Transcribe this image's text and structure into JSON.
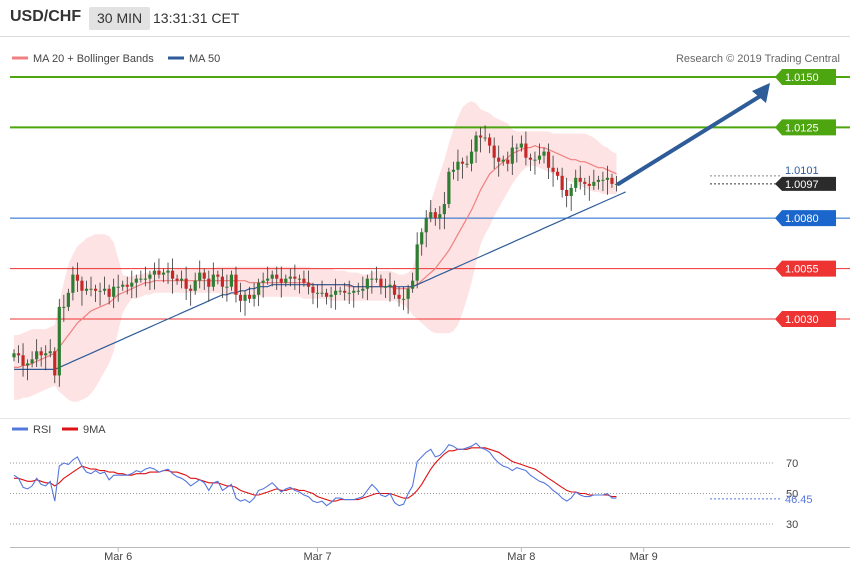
{
  "header": {
    "symbol": "USD/CHF",
    "timeframe": "30 MIN",
    "time": "13:31:31 CET"
  },
  "legend": [
    {
      "label": "MA 20 + Bollinger Bands",
      "color": "#f08080"
    },
    {
      "label": "MA 50",
      "color": "#2e5c99"
    }
  ],
  "copyright": "Research © 2019 Trading Central",
  "chart_data": [
    {
      "type": "candlestick",
      "ylim": [
        2.998,
        2.0158
      ],
      "price_range": [
        0.9988,
        1.0158
      ],
      "x_ticks": [
        {
          "index": 23,
          "label": "Mar 6"
        },
        {
          "index": 67,
          "label": "Mar 7"
        },
        {
          "index": 112,
          "label": "Mar 8"
        },
        {
          "index": 139,
          "label": "Mar 9"
        }
      ],
      "levels": [
        {
          "value": 1.015,
          "label": "1.0150",
          "color": "#4da60f"
        },
        {
          "value": 1.0125,
          "label": "1.0125",
          "color": "#4da60f"
        },
        {
          "value": 1.008,
          "label": "1.0080",
          "color": "#1a66cc"
        },
        {
          "value": 1.0055,
          "label": "1.0055",
          "color": "#ee3333"
        },
        {
          "value": 1.003,
          "label": "1.0030",
          "color": "#ee3333"
        }
      ],
      "last_price": {
        "value": 1.0097,
        "label": "1.0097"
      },
      "bb_upper_label": {
        "value": 1.0101,
        "label": "1.0101"
      },
      "close": [
        1.0013,
        1.0012,
        1.0007,
        1.0008,
        1.001,
        1.0014,
        1.0012,
        1.0013,
        1.0014,
        1.0002,
        1.0036,
        1.0036,
        1.0043,
        1.0052,
        1.0049,
        1.0044,
        1.0045,
        1.0045,
        1.0044,
        1.0044,
        1.0045,
        1.0041,
        1.0046,
        1.0046,
        1.0047,
        1.0046,
        1.0048,
        1.005,
        1.005,
        1.005,
        1.0052,
        1.0054,
        1.0052,
        1.0053,
        1.0054,
        1.005,
        1.0049,
        1.005,
        1.0045,
        1.0044,
        1.0049,
        1.0053,
        1.005,
        1.0046,
        1.0052,
        1.0051,
        1.0046,
        1.0046,
        1.0052,
        1.0042,
        1.0039,
        1.0042,
        1.004,
        1.0042,
        1.0048,
        1.0049,
        1.005,
        1.0052,
        1.005,
        1.0048,
        1.005,
        1.0051,
        1.005,
        1.005,
        1.0048,
        1.0046,
        1.0043,
        1.0043,
        1.0043,
        1.0041,
        1.0042,
        1.0044,
        1.0044,
        1.0043,
        1.0043,
        1.0044,
        1.0044,
        1.0045,
        1.005,
        1.005,
        1.005,
        1.0046,
        1.0046,
        1.0047,
        1.0042,
        1.004,
        1.004,
        1.0045,
        1.0049,
        1.0067,
        1.0073,
        1.008,
        1.0083,
        1.008,
        1.0082,
        1.0087,
        1.0103,
        1.0104,
        1.0108,
        1.0107,
        1.0107,
        1.0113,
        1.0121,
        1.012,
        1.012,
        1.0116,
        1.011,
        1.0108,
        1.0109,
        1.0107,
        1.0115,
        1.0115,
        1.0117,
        1.011,
        1.0109,
        1.0109,
        1.0111,
        1.0113,
        1.0105,
        1.0103,
        1.0101,
        1.0094,
        1.0091,
        1.0095,
        1.01,
        1.0098,
        1.0097,
        1.0096,
        1.0098,
        1.0099,
        1.0099,
        1.01,
        1.0097,
        1.0097
      ],
      "ma20": [
        1.0006,
        1.0006,
        1.0007,
        1.0007,
        1.0008,
        1.0009,
        1.001,
        1.0011,
        1.0012,
        1.0013,
        1.0016,
        1.0019,
        1.0022,
        1.0025,
        1.0028,
        1.003,
        1.0032,
        1.0034,
        1.0035,
        1.0036,
        1.0037,
        1.0038,
        1.004,
        1.0042,
        1.0043,
        1.0044,
        1.0045,
        1.0046,
        1.0047,
        1.0048,
        1.0048,
        1.0049,
        1.0049,
        1.0049,
        1.0049,
        1.0049,
        1.0049,
        1.0049,
        1.0049,
        1.0049,
        1.0049,
        1.0049,
        1.0049,
        1.0049,
        1.0049,
        1.0049,
        1.0049,
        1.0049,
        1.0049,
        1.0049,
        1.0049,
        1.0049,
        1.0048,
        1.0048,
        1.0048,
        1.0048,
        1.0048,
        1.0048,
        1.0048,
        1.0048,
        1.0048,
        1.0048,
        1.0048,
        1.0048,
        1.0048,
        1.0048,
        1.0047,
        1.0047,
        1.0047,
        1.0047,
        1.0047,
        1.0047,
        1.0047,
        1.0047,
        1.0046,
        1.0046,
        1.0046,
        1.0046,
        1.0046,
        1.0046,
        1.0046,
        1.0046,
        1.0046,
        1.0046,
        1.0045,
        1.0045,
        1.0045,
        1.0045,
        1.0046,
        1.0047,
        1.0049,
        1.0051,
        1.0053,
        1.0055,
        1.0058,
        1.0061,
        1.0064,
        1.0068,
        1.0072,
        1.0076,
        1.008,
        1.0084,
        1.0089,
        1.0094,
        1.0098,
        1.0102,
        1.0104,
        1.0106,
        1.0108,
        1.011,
        1.0112,
        1.0113,
        1.0114,
        1.0115,
        1.0115,
        1.0116,
        1.0115,
        1.0115,
        1.0114,
        1.0113,
        1.0112,
        1.0111,
        1.011,
        1.0109,
        1.0109,
        1.0108,
        1.0108,
        1.0107,
        1.0106,
        1.0105,
        1.0105,
        1.0104,
        1.0103,
        1.0102
      ],
      "bb_upper": [
        1.0022,
        1.0022,
        1.0023,
        1.0024,
        1.0025,
        1.0025,
        1.0025,
        1.0025,
        1.0026,
        1.0027,
        1.0038,
        1.0048,
        1.0057,
        1.0062,
        1.0066,
        1.0068,
        1.007,
        1.0071,
        1.0072,
        1.0072,
        1.0072,
        1.0071,
        1.0068,
        1.006,
        1.0052,
        1.0051,
        1.0051,
        1.0052,
        1.0052,
        1.0053,
        1.0053,
        1.0054,
        1.0054,
        1.0054,
        1.0054,
        1.0054,
        1.0055,
        1.0055,
        1.0055,
        1.0055,
        1.0055,
        1.0055,
        1.0055,
        1.0055,
        1.0055,
        1.0056,
        1.0056,
        1.0056,
        1.0056,
        1.0056,
        1.0056,
        1.0056,
        1.0056,
        1.0056,
        1.0056,
        1.0056,
        1.0056,
        1.0056,
        1.0056,
        1.0056,
        1.0056,
        1.0056,
        1.0056,
        1.0056,
        1.0056,
        1.0056,
        1.0055,
        1.0055,
        1.0055,
        1.0055,
        1.0055,
        1.0054,
        1.0054,
        1.0054,
        1.0053,
        1.0053,
        1.0053,
        1.0052,
        1.0052,
        1.0053,
        1.0054,
        1.0054,
        1.0054,
        1.0054,
        1.0053,
        1.0052,
        1.0052,
        1.0053,
        1.0055,
        1.0063,
        1.0072,
        1.008,
        1.0088,
        1.0095,
        1.0102,
        1.0109,
        1.0117,
        1.0124,
        1.013,
        1.0135,
        1.0137,
        1.0138,
        1.0137,
        1.0134,
        1.0133,
        1.0132,
        1.013,
        1.0129,
        1.0128,
        1.0127,
        1.0124,
        1.0123,
        1.0123,
        1.0123,
        1.0123,
        1.0123,
        1.0123,
        1.0123,
        1.0123,
        1.0122,
        1.0122,
        1.0122,
        1.0122,
        1.0122,
        1.0122,
        1.0122,
        1.0122,
        1.0121,
        1.012,
        1.0118,
        1.0116,
        1.0115,
        1.0113,
        1.0112
      ],
      "bb_lower": [
        0.999,
        0.999,
        0.9991,
        0.9991,
        0.9992,
        0.9993,
        0.9994,
        0.9995,
        0.9996,
        0.9997,
        0.9994,
        0.9992,
        0.999,
        0.9989,
        0.9989,
        0.999,
        0.9991,
        0.9993,
        0.9996,
        1.0,
        1.0004,
        1.0008,
        1.0014,
        1.0024,
        1.0033,
        1.0037,
        1.004,
        1.004,
        1.0041,
        1.0042,
        1.0042,
        1.0043,
        1.0043,
        1.0043,
        1.0043,
        1.0043,
        1.0043,
        1.0043,
        1.0043,
        1.0043,
        1.0043,
        1.0043,
        1.0043,
        1.0043,
        1.0043,
        1.0043,
        1.0042,
        1.0042,
        1.0042,
        1.0042,
        1.0042,
        1.0042,
        1.0041,
        1.0041,
        1.0041,
        1.0041,
        1.0041,
        1.0041,
        1.0041,
        1.0041,
        1.0041,
        1.0041,
        1.0041,
        1.0041,
        1.004,
        1.004,
        1.004,
        1.004,
        1.004,
        1.004,
        1.0039,
        1.0039,
        1.0039,
        1.0039,
        1.0039,
        1.0039,
        1.0039,
        1.0039,
        1.0039,
        1.0039,
        1.0039,
        1.0039,
        1.0039,
        1.0039,
        1.0039,
        1.0038,
        1.0037,
        1.0035,
        1.0032,
        1.003,
        1.0028,
        1.0026,
        1.0024,
        1.0023,
        1.0023,
        1.0023,
        1.0023,
        1.0024,
        1.0027,
        1.0033,
        1.004,
        1.0048,
        1.0058,
        1.0067,
        1.0072,
        1.0076,
        1.0081,
        1.0085,
        1.0089,
        1.0093,
        1.0097,
        1.01,
        1.0103,
        1.0105,
        1.0106,
        1.0106,
        1.0105,
        1.0104,
        1.0103,
        1.0102,
        1.0101,
        1.01,
        1.0099,
        1.0098,
        1.0097,
        1.0096,
        1.0095,
        1.0094,
        1.0093,
        1.0093,
        1.0092,
        1.0092,
        1.0092,
        1.0092,
        1.0091,
        1.0091
      ],
      "ma50": [
        1.0005,
        1.0005,
        1.0005,
        1.0005,
        1.0005,
        1.0005,
        1.0005,
        1.0005,
        1.0005,
        1.0005,
        1.0006,
        1.0007,
        1.0008,
        1.0009,
        1.001,
        1.0011,
        1.0012,
        1.0013,
        1.0014,
        1.0015,
        1.0016,
        1.0017,
        1.0018,
        1.0019,
        1.002,
        1.0021,
        1.0022,
        1.0023,
        1.0024,
        1.0025,
        1.0026,
        1.0027,
        1.0028,
        1.0029,
        1.003,
        1.0031,
        1.0032,
        1.0033,
        1.0034,
        1.0035,
        1.0036,
        1.0037,
        1.0038,
        1.0039,
        1.004,
        1.0041,
        1.0042,
        1.0042,
        1.0043,
        1.0043,
        1.0044,
        1.0044,
        1.0045,
        1.0045,
        1.0046,
        1.0046,
        1.0046,
        1.0047,
        1.0047,
        1.0047,
        1.0047,
        1.0047,
        1.0047,
        1.0047,
        1.0047,
        1.0047,
        1.0047,
        1.0047,
        1.0047,
        1.0047,
        1.0047,
        1.0047,
        1.0047,
        1.0047,
        1.0047,
        1.0046,
        1.0046,
        1.0046,
        1.0046,
        1.0046,
        1.0046,
        1.0046,
        1.0046,
        1.0046,
        1.0046,
        1.0046,
        1.0046,
        1.0046,
        1.0046,
        1.0047,
        1.0048,
        1.0049,
        1.005,
        1.0051,
        1.0052,
        1.0053,
        1.0054,
        1.0055,
        1.0056,
        1.0057,
        1.0058,
        1.0059,
        1.006,
        1.0061,
        1.0062,
        1.0063,
        1.0064,
        1.0065,
        1.0066,
        1.0067,
        1.0068,
        1.0069,
        1.007,
        1.0071,
        1.0072,
        1.0073,
        1.0074,
        1.0075,
        1.0076,
        1.0077,
        1.0078,
        1.0079,
        1.008,
        1.0081,
        1.0082,
        1.0083,
        1.0084,
        1.0085,
        1.0086,
        1.0087,
        1.0088,
        1.0089,
        1.009,
        1.0091,
        1.0092,
        1.0093
      ]
    },
    {
      "type": "line",
      "legend": [
        {
          "label": "RSI",
          "color": "#5577dd"
        },
        {
          "label": "9MA",
          "color": "#dd1111"
        }
      ],
      "ylim": [
        20,
        85
      ],
      "y_ticks": [
        70,
        50,
        30
      ],
      "last_value": {
        "value": 46.45,
        "label": "46.45"
      },
      "rsi": [
        62,
        60,
        54,
        53,
        55,
        60,
        56,
        55,
        58,
        45,
        68,
        70,
        69,
        72,
        74,
        68,
        64,
        63,
        65,
        63,
        64,
        59,
        62,
        62,
        62,
        62,
        63,
        65,
        64,
        66,
        67,
        66,
        64,
        65,
        66,
        63,
        61,
        60,
        58,
        55,
        57,
        59,
        57,
        52,
        57,
        58,
        52,
        54,
        56,
        47,
        45,
        46,
        44,
        47,
        52,
        53,
        55,
        57,
        54,
        51,
        53,
        54,
        52,
        51,
        49,
        48,
        45,
        44,
        45,
        42,
        44,
        47,
        47,
        46,
        46,
        46,
        47,
        48,
        52,
        56,
        53,
        49,
        48,
        50,
        44,
        42,
        43,
        50,
        55,
        71,
        74,
        77,
        79,
        74,
        75,
        78,
        82,
        81,
        79,
        79,
        80,
        81,
        83,
        80,
        79,
        77,
        73,
        70,
        68,
        67,
        65,
        67,
        66,
        65,
        62,
        60,
        58,
        57,
        55,
        52,
        50,
        47,
        45,
        47,
        51,
        49,
        48,
        48,
        49,
        49,
        49,
        50,
        47,
        47
      ],
      "ma9": [
        60,
        60,
        59,
        58,
        58,
        59,
        58,
        57,
        57,
        55,
        57,
        60,
        62,
        64,
        66,
        68,
        67,
        66,
        66,
        65,
        65,
        64,
        64,
        63,
        63,
        62,
        62,
        63,
        63,
        63,
        64,
        64,
        64,
        65,
        65,
        64,
        64,
        63,
        62,
        60,
        60,
        59,
        58,
        57,
        57,
        57,
        56,
        55,
        55,
        54,
        52,
        51,
        50,
        49,
        49,
        50,
        51,
        52,
        53,
        52,
        52,
        53,
        53,
        52,
        52,
        51,
        50,
        48,
        47,
        46,
        45,
        45,
        46,
        46,
        46,
        46,
        46,
        47,
        48,
        49,
        50,
        50,
        50,
        50,
        49,
        48,
        47,
        47,
        49,
        52,
        56,
        61,
        66,
        70,
        73,
        76,
        78,
        78,
        79,
        79,
        79,
        80,
        80,
        80,
        80,
        79,
        78,
        77,
        75,
        73,
        71,
        70,
        69,
        68,
        67,
        66,
        64,
        62,
        60,
        58,
        56,
        54,
        52,
        51,
        51,
        50,
        50,
        49,
        49,
        49,
        49,
        49,
        48,
        48
      ]
    }
  ]
}
